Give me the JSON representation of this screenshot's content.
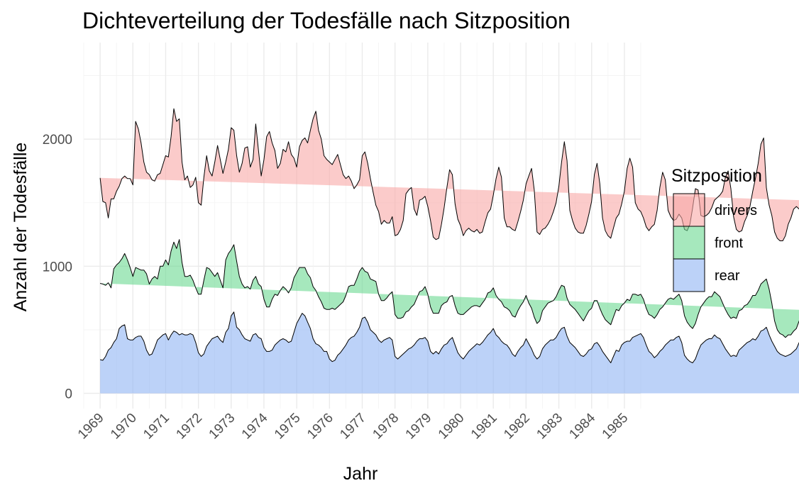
{
  "chart_data": {
    "type": "area",
    "stacked": true,
    "title": "Dichteverteilung der Todesfälle nach Sitzposition",
    "xlabel": "Jahr",
    "ylabel": "Anzahl der Todesfälle",
    "xlim": [
      1968.5,
      1985.5
    ],
    "ylim": [
      -120,
      2760
    ],
    "x_ticks": [
      1969,
      1970,
      1971,
      1972,
      1973,
      1974,
      1975,
      1976,
      1977,
      1978,
      1979,
      1980,
      1981,
      1982,
      1983,
      1984,
      1985
    ],
    "y_ticks": [
      0,
      1000,
      2000
    ],
    "grid": true,
    "legend": {
      "title": "Sitzposition",
      "placement": "right"
    },
    "x_start": 1969,
    "x_step": 0.0833333,
    "series": [
      {
        "name": "rear",
        "color": "#8fb4f4",
        "values": [
          265,
          260,
          290,
          340,
          360,
          400,
          430,
          510,
          530,
          540,
          430,
          420,
          420,
          440,
          450,
          450,
          410,
          340,
          300,
          310,
          360,
          420,
          440,
          460,
          470,
          420,
          460,
          490,
          480,
          460,
          470,
          460,
          460,
          470,
          460,
          400,
          320,
          290,
          310,
          370,
          400,
          430,
          440,
          450,
          420,
          400,
          480,
          510,
          610,
          640,
          520,
          500,
          460,
          430,
          420,
          410,
          460,
          470,
          440,
          430,
          360,
          330,
          330,
          340,
          380,
          400,
          420,
          430,
          420,
          400,
          410,
          480,
          550,
          590,
          630,
          610,
          560,
          510,
          430,
          390,
          380,
          360,
          330,
          330,
          270,
          250,
          260,
          300,
          320,
          350,
          380,
          420,
          440,
          450,
          480,
          520,
          590,
          600,
          560,
          500,
          480,
          460,
          420,
          400,
          420,
          430,
          440,
          420,
          290,
          270,
          290,
          310,
          330,
          350,
          360,
          380,
          410,
          430,
          430,
          440,
          410,
          330,
          310,
          330,
          310,
          350,
          380,
          390,
          420,
          440,
          380,
          320,
          290,
          270,
          300,
          330,
          350,
          370,
          390,
          380,
          400,
          430,
          460,
          480,
          510,
          460,
          440,
          410,
          390,
          380,
          350,
          310,
          290,
          330,
          360,
          380,
          430,
          390,
          350,
          300,
          270,
          290,
          350,
          380,
          400,
          420,
          420,
          440,
          480,
          510,
          520,
          450,
          400,
          380,
          360,
          330,
          300,
          290,
          310,
          340,
          350,
          390,
          400,
          370,
          330,
          300,
          270,
          240,
          290,
          340,
          330,
          380,
          400,
          410,
          410,
          440,
          450,
          460,
          470,
          440,
          380,
          330,
          310,
          280,
          300,
          330,
          350,
          380,
          400,
          420,
          420,
          440,
          450,
          400,
          300,
          270,
          250,
          240,
          270,
          330,
          380,
          400,
          420,
          430,
          430,
          460,
          440,
          430,
          390,
          350,
          320,
          290,
          300,
          290,
          340,
          360,
          380,
          400,
          410,
          430,
          420,
          450,
          490,
          500,
          520,
          460,
          410,
          370,
          330,
          310,
          300,
          290,
          300,
          310,
          330,
          350,
          400,
          420,
          430,
          440,
          460,
          480,
          490,
          460,
          400,
          420,
          440,
          430,
          390,
          350,
          300,
          290,
          300,
          330,
          350,
          380,
          400,
          420,
          450,
          460,
          470,
          480,
          490,
          500
        ],
        "z": 1
      },
      {
        "name": "front",
        "color": "#6ad891",
        "values": [
          600,
          600,
          560,
          530,
          470,
          580,
          580,
          520,
          530,
          560,
          620,
          570,
          500,
          550,
          530,
          520,
          560,
          600,
          560,
          590,
          560,
          480,
          560,
          540,
          580,
          590,
          660,
          700,
          660,
          750,
          560,
          460,
          460,
          460,
          430,
          430,
          460,
          490,
          580,
          620,
          580,
          520,
          480,
          500,
          470,
          430,
          570,
          590,
          520,
          530,
          520,
          420,
          400,
          400,
          420,
          410,
          430,
          450,
          420,
          410,
          380,
          350,
          350,
          400,
          400,
          370,
          390,
          410,
          400,
          390,
          420,
          430,
          400,
          400,
          360,
          380,
          380,
          400,
          410,
          420,
          380,
          360,
          340,
          330,
          390,
          420,
          400,
          380,
          380,
          370,
          390,
          420,
          410,
          400,
          420,
          440,
          400,
          360,
          390,
          400,
          410,
          420,
          360,
          330,
          310,
          320,
          340,
          380,
          330,
          320,
          300,
          290,
          310,
          300,
          320,
          320,
          340,
          370,
          380,
          400,
          370,
          350,
          320,
          300,
          320,
          340,
          330,
          330,
          340,
          330,
          310,
          310,
          330,
          350,
          340,
          330,
          330,
          320,
          300,
          300,
          310,
          310,
          330,
          320,
          320,
          310,
          300,
          310,
          290,
          290,
          300,
          300,
          310,
          320,
          330,
          340,
          340,
          320,
          320,
          300,
          280,
          280,
          300,
          300,
          310,
          300,
          310,
          320,
          330,
          340,
          320,
          300,
          300,
          300,
          300,
          300,
          300,
          280,
          300,
          310,
          320,
          340,
          330,
          300,
          290,
          280,
          290,
          300,
          310,
          320,
          320,
          310,
          310,
          330,
          320,
          340,
          330,
          310,
          310,
          300,
          290,
          290,
          300,
          310,
          320,
          330,
          330,
          330,
          340,
          330,
          320,
          320,
          330,
          330,
          310,
          290,
          280,
          270,
          280,
          290,
          300,
          310,
          320,
          330,
          330,
          340,
          340,
          330,
          320,
          310,
          300,
          300,
          300,
          300,
          310,
          300,
          310,
          300,
          320,
          340,
          350,
          360,
          370,
          380,
          380,
          360,
          300,
          200,
          170,
          160,
          160,
          150,
          160,
          150,
          160,
          160,
          170,
          170,
          180,
          190,
          190,
          200,
          200,
          180,
          160,
          150,
          160,
          170,
          170,
          170,
          180,
          180,
          190,
          190,
          200,
          200,
          210,
          220
        ],
        "z": 2
      },
      {
        "name": "drivers",
        "color": "#f8a9a6",
        "values": [
          830,
          650,
          650,
          510,
          700,
          550,
          580,
          600,
          630,
          610,
          640,
          700,
          720,
          1150,
          1100,
          1000,
          850,
          800,
          860,
          780,
          750,
          820,
          730,
          800,
          820,
          850,
          900,
          1050,
          1000,
          950,
          790,
          760,
          790,
          690,
          750,
          870,
          720,
          700,
          810,
          880,
          770,
          760,
          900,
          1000,
          950,
          900,
          770,
          820,
          960,
          900,
          830,
          820,
          950,
          1100,
          1100,
          960,
          950,
          1200,
          1050,
          870,
          1100,
          1340,
          1380,
          1230,
          1130,
          1000,
          1000,
          1080,
          1080,
          1190,
          1050,
          940,
          830,
          950,
          1000,
          1020,
          1030,
          1160,
          1320,
          1410,
          1310,
          1280,
          1200,
          1180,
          1160,
          1130,
          1180,
          1200,
          1100,
          1000,
          920,
          870,
          820,
          760,
          740,
          720,
          880,
          940,
          860,
          790,
          690,
          600,
          650,
          600,
          630,
          590,
          560,
          590,
          620,
          660,
          700,
          760,
          930,
          950,
          940,
          750,
          650,
          720,
          720,
          710,
          690,
          680,
          600,
          580,
          590,
          640,
          750,
          900,
          1000,
          950,
          800,
          740,
          700,
          620,
          640,
          640,
          600,
          580,
          600,
          580,
          560,
          610,
          630,
          650,
          730,
          920,
          1040,
          980,
          700,
          640,
          660,
          680,
          680,
          700,
          740,
          800,
          880,
          1000,
          1100,
          1000,
          720,
          680,
          640,
          620,
          620,
          650,
          700,
          740,
          820,
          970,
          1140,
          1080,
          740,
          680,
          640,
          640,
          660,
          690,
          710,
          760,
          840,
          990,
          1080,
          980,
          760,
          700,
          680,
          680,
          700,
          720,
          760,
          800,
          880,
          1030,
          1120,
          1000,
          720,
          680,
          650,
          640,
          640,
          660,
          700,
          740,
          820,
          960,
          1060,
          970,
          700,
          640,
          620,
          610,
          630,
          650,
          680,
          720,
          800,
          950,
          1060,
          980,
          720,
          680,
          660,
          660,
          700,
          720,
          760,
          800,
          880,
          1040,
          1130,
          1020,
          790,
          700,
          620,
          620,
          660,
          700,
          740,
          820,
          920,
          1000,
          1100,
          1130,
          720,
          660,
          690,
          700,
          720,
          730,
          740,
          800,
          870,
          920,
          960,
          960,
          880,
          800,
          760,
          720,
          700,
          720,
          750,
          800,
          850,
          880,
          920,
          960,
          980,
          1000,
          1020,
          1040
        ]
      }
    ]
  }
}
